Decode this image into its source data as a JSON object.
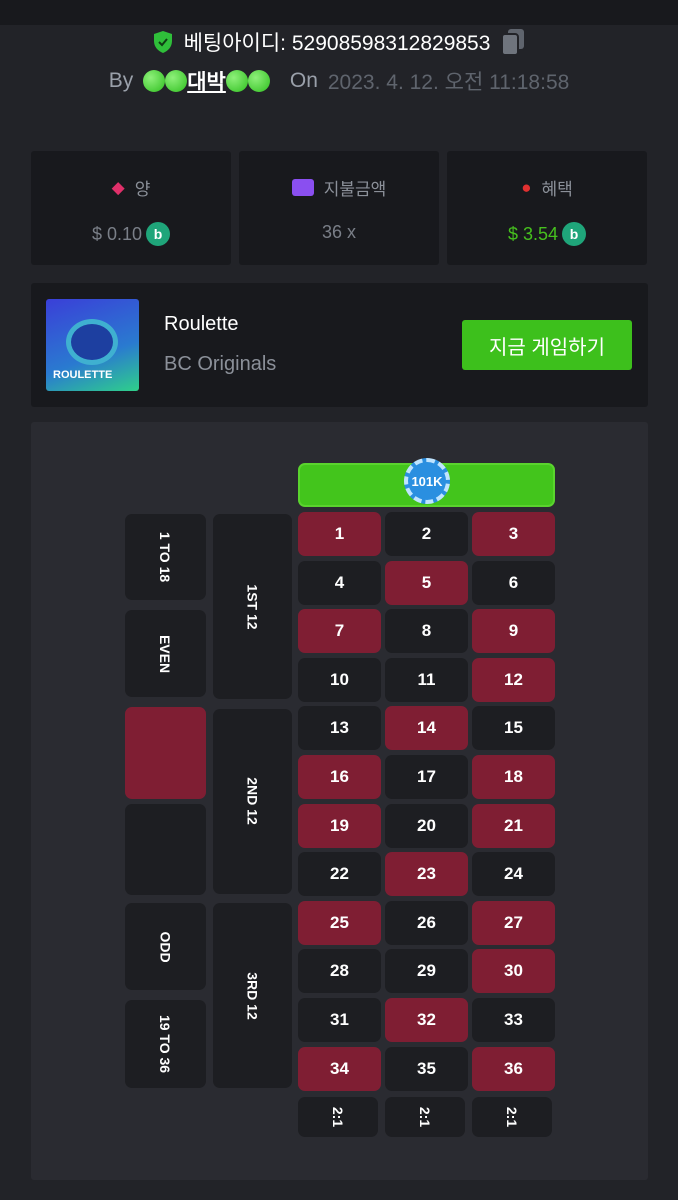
{
  "header": {
    "bet_id_label": "베팅아이디:",
    "bet_id": "5290859831282985​3",
    "by_label": "By",
    "username": "대박",
    "on_label": "On",
    "date": "2023. 4. 12. 오전 11:18:58"
  },
  "stats": [
    {
      "label": "양",
      "value": "$ 0.10",
      "icon": "bet-amount-icon",
      "color": "#e0306a"
    },
    {
      "label": "지불금액",
      "value": "36 x",
      "icon": "card-icon",
      "color": "#8a4ff0"
    },
    {
      "label": "혜택",
      "value": "$ 3.54",
      "icon": "profit-hand-icon",
      "color": "#e03030",
      "value_color": "#46c01e"
    }
  ],
  "game": {
    "name": "Roulette",
    "provider": "BC Originals",
    "thumb_text": "ROULETTE",
    "play_label": "지금 게임하기"
  },
  "board": {
    "zero_chip": "101K",
    "red_numbers": [
      1,
      3,
      5,
      7,
      9,
      12,
      14,
      16,
      18,
      19,
      21,
      23,
      25,
      27,
      30,
      32,
      34,
      36
    ],
    "outside": [
      "1 TO 18",
      "EVEN",
      "",
      "",
      "ODD",
      "19 TO 36"
    ],
    "dozens": [
      "1ST 12",
      "2ND 12",
      "3RD 12"
    ],
    "columns": [
      "2:1",
      "2:1",
      "2:1"
    ],
    "colors": {
      "red": "#7f1e33",
      "black": "#1d1e22",
      "green": "#43c51c"
    }
  }
}
